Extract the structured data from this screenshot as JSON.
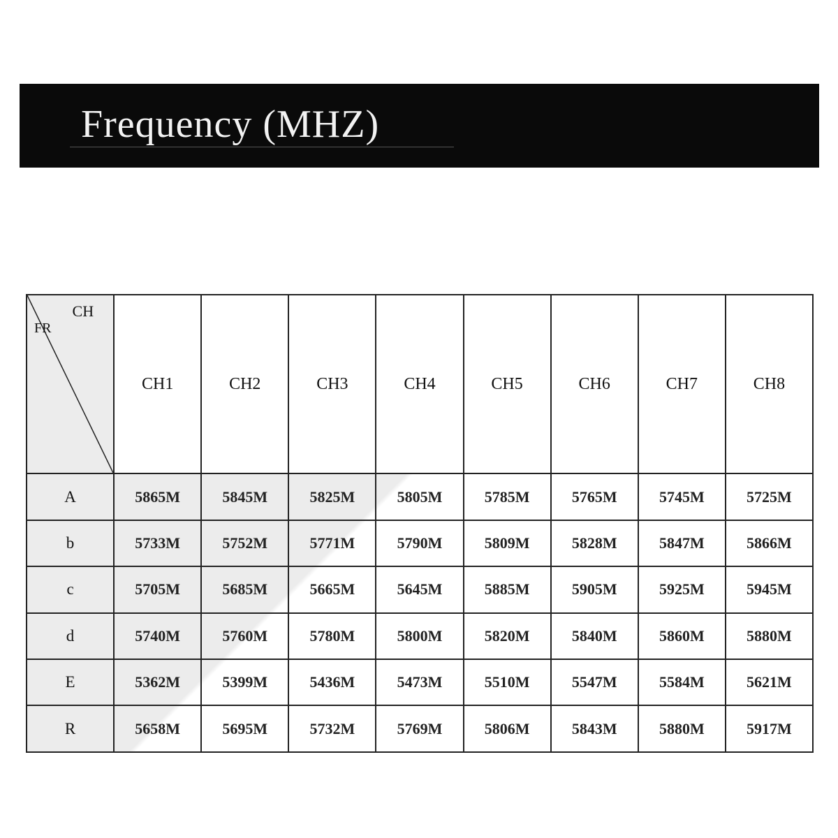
{
  "title": "Frequency (MHZ)",
  "table": {
    "corner_ch": "CH",
    "corner_fr": "FR",
    "columns": [
      "CH1",
      "CH2",
      "CH3",
      "CH4",
      "CH5",
      "CH6",
      "CH7",
      "CH8"
    ],
    "rows": [
      {
        "band": "A",
        "values": [
          "5865M",
          "5845M",
          "5825M",
          "5805M",
          "5785M",
          "5765M",
          "5745M",
          "5725M"
        ]
      },
      {
        "band": "b",
        "values": [
          "5733M",
          "5752M",
          "5771M",
          "5790M",
          "5809M",
          "5828M",
          "5847M",
          "5866M"
        ]
      },
      {
        "band": "c",
        "values": [
          "5705M",
          "5685M",
          "5665M",
          "5645M",
          "5885M",
          "5905M",
          "5925M",
          "5945M"
        ]
      },
      {
        "band": "d",
        "values": [
          "5740M",
          "5760M",
          "5780M",
          "5800M",
          "5820M",
          "5840M",
          "5860M",
          "5880M"
        ]
      },
      {
        "band": "E",
        "values": [
          "5362M",
          "5399M",
          "5436M",
          "5473M",
          "5510M",
          "5547M",
          "5584M",
          "5621M"
        ]
      },
      {
        "band": "R",
        "values": [
          "5658M",
          "5695M",
          "5732M",
          "5769M",
          "5806M",
          "5843M",
          "5880M",
          "5917M"
        ]
      }
    ]
  },
  "colors": {
    "banner": "#0a0a0a",
    "banner_text": "#f2f2f2",
    "shade": "#ececec"
  }
}
